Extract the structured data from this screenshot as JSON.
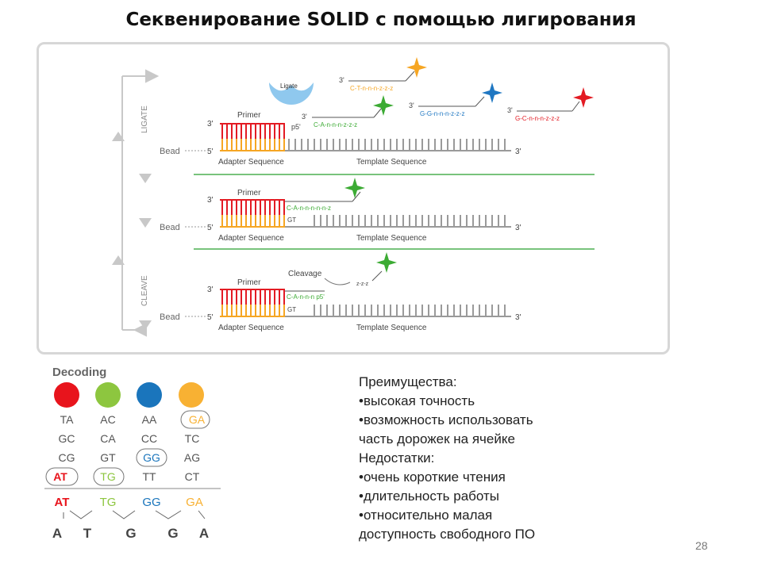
{
  "title": "Секвенирование SOLID с помощью лигирования",
  "diagram": {
    "ligate_label": "LIGATE",
    "cleave_label": "CLEAVE",
    "ligase_label": "Ligate",
    "cleavage_label": "Cleavage",
    "primer_label": "Primer",
    "bead_label": "Bead",
    "adapter_label": "Adapter Sequence",
    "template_label": "Template Sequence",
    "three_prime": "3'",
    "five_prime": "5'",
    "p5_label": "p5'",
    "probe_orange": "C-T-n-n-n-z-z-z",
    "probe_green": "C-A-n-n-n-z-z-z",
    "probe_blue": "G-G-n-n-n-z-z-z",
    "probe_red": "G-C-n-n-n-z-z-z",
    "probe_ligated": "C-A-n-n-n-n-n-z",
    "probe_cleaved": "C-A-n-n-n p5'",
    "cleaved_fragment": "z-z-z",
    "gt_label": "GT",
    "colors": {
      "red": "#e31b23",
      "orange": "#f6a623",
      "green": "#3cab34",
      "blue": "#1f77c2",
      "gray": "#9a9a9a"
    }
  },
  "decoding": {
    "title": "Decoding",
    "dot_colors": [
      "#e8141c",
      "#8dc63f",
      "#1a75bc",
      "#f8b133"
    ],
    "rows": [
      [
        "TA",
        "AC",
        "AA",
        "GA"
      ],
      [
        "GC",
        "CA",
        "CC",
        "TC"
      ],
      [
        "CG",
        "GT",
        "GG",
        "AG"
      ],
      [
        "AT",
        "TG",
        "TT",
        "CT"
      ]
    ],
    "sequence_pairs": [
      "AT",
      "TG",
      "GG",
      "GA"
    ],
    "bases": [
      "A",
      "T",
      "G",
      "G",
      "A"
    ]
  },
  "notes": {
    "advantages_title": "Преимущества:",
    "advantages": [
      "•высокая точность",
      "•возможность использовать",
      "часть дорожек на ячейке"
    ],
    "disadvantages_title": "Недостатки:",
    "disadvantages": [
      "•очень короткие чтения",
      "•длительность работы",
      "•относительно малая",
      "доступность свободного ПО"
    ]
  },
  "page_number": "28"
}
